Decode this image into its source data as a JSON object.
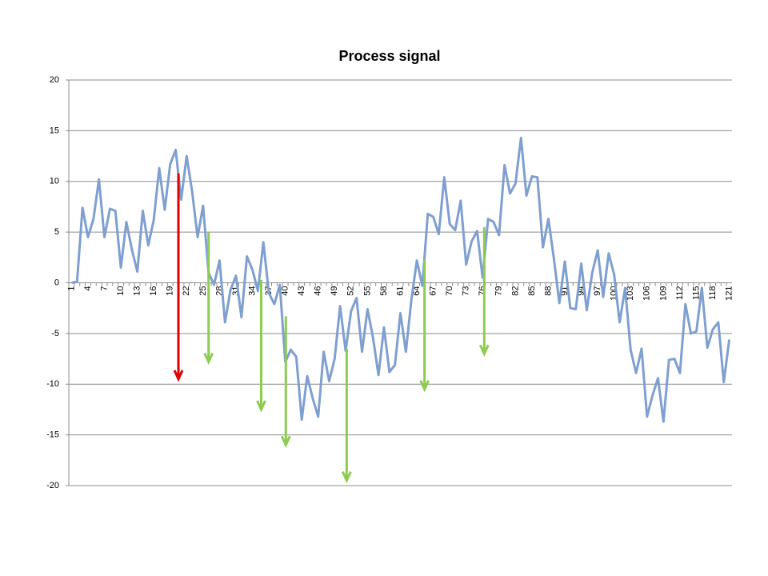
{
  "chart_data": {
    "type": "line",
    "title": "Process signal",
    "categories": [
      "1",
      null,
      null,
      "4",
      null,
      null,
      "7",
      null,
      null,
      "10",
      null,
      null,
      "13",
      null,
      null,
      "16",
      null,
      null,
      "19",
      null,
      null,
      "22",
      null,
      null,
      "25",
      null,
      null,
      "28",
      null,
      null,
      "31",
      null,
      null,
      "34",
      null,
      null,
      "37",
      null,
      null,
      "40",
      null,
      null,
      "43",
      null,
      null,
      "46",
      null,
      null,
      "49",
      null,
      null,
      "52",
      null,
      null,
      "55",
      null,
      null,
      "58",
      null,
      null,
      "61",
      null,
      null,
      "64",
      null,
      null,
      "67",
      null,
      null,
      "70",
      null,
      null,
      "73",
      null,
      null,
      "76",
      null,
      null,
      "79",
      null,
      null,
      "82",
      null,
      null,
      "85",
      null,
      null,
      "88",
      null,
      null,
      "91",
      null,
      null,
      "94",
      null,
      null,
      "97",
      null,
      null,
      "100",
      null,
      null,
      "103",
      null,
      null,
      "106",
      null,
      null,
      "109",
      null,
      null,
      "112",
      null,
      null,
      "115",
      null,
      null,
      "118",
      null,
      null,
      "121"
    ],
    "series": [
      {
        "color": "#7f9fd0",
        "values": [
          0,
          0.1,
          7.4,
          4.5,
          6.3,
          10.2,
          4.5,
          7.3,
          7.1,
          1.5,
          6.0,
          3.3,
          1.1,
          7.1,
          3.7,
          6.2,
          11.3,
          7.2,
          11.7,
          13.1,
          8.2,
          12.5,
          9.0,
          4.5,
          7.6,
          1.0,
          -0.2,
          2.2,
          -3.9,
          -0.7,
          0.7,
          -3.4,
          2.6,
          1.3,
          -0.8,
          4.0,
          -1.0,
          -2.1,
          -0.2,
          -7.8,
          -6.6,
          -7.3,
          -13.5,
          -9.2,
          -11.4,
          -13.2,
          -6.8,
          -9.7,
          -7.5,
          -2.3,
          -6.7,
          -2.8,
          -1.5,
          -6.8,
          -2.6,
          -5.4,
          -9.1,
          -4.4,
          -8.8,
          -8.1,
          -3.0,
          -6.8,
          -1.7,
          2.2,
          -0.3,
          6.8,
          6.5,
          4.8,
          10.4,
          5.8,
          5.2,
          8.1,
          1.8,
          4.1,
          5.1,
          0.5,
          6.3,
          6.0,
          4.7,
          11.6,
          8.8,
          9.8,
          14.3,
          8.6,
          10.5,
          10.4,
          3.5,
          6.3,
          2.4,
          -2.0,
          2.1,
          -2.5,
          -2.6,
          1.9,
          -2.7,
          1.0,
          3.2,
          -1.4,
          2.9,
          0.8,
          -3.9,
          -0.5,
          -6.6,
          -8.9,
          -6.5,
          -13.2,
          -11.1,
          -9.4,
          -13.7,
          -7.6,
          -7.5,
          -8.9,
          -2.1,
          -5.0,
          -4.8,
          -0.5,
          -6.4,
          -4.6,
          -3.9,
          -9.8,
          -5.6
        ]
      }
    ],
    "ylim": [
      -20,
      20
    ],
    "yticks": [
      -20,
      -15,
      -10,
      -5,
      0,
      5,
      10,
      15,
      20
    ],
    "grid": true,
    "annotations": [
      {
        "x": 20.5,
        "y_from": 10.8,
        "y_to": -9.5,
        "color": "#e00000"
      },
      {
        "x": 26,
        "y_from": 5,
        "y_to": -7.8,
        "color": "#8ccc50"
      },
      {
        "x": 35.6,
        "y_from": 0.3,
        "y_to": -12.5,
        "color": "#8ccc50"
      },
      {
        "x": 40.1,
        "y_from": -3.3,
        "y_to": -16,
        "color": "#8ccc50"
      },
      {
        "x": 51.2,
        "y_from": -6.5,
        "y_to": -19.5,
        "color": "#8ccc50"
      },
      {
        "x": 65.4,
        "y_from": 2.3,
        "y_to": -10.5,
        "color": "#8ccc50"
      },
      {
        "x": 76.3,
        "y_from": 5.5,
        "y_to": -7,
        "color": "#8ccc50"
      }
    ]
  }
}
